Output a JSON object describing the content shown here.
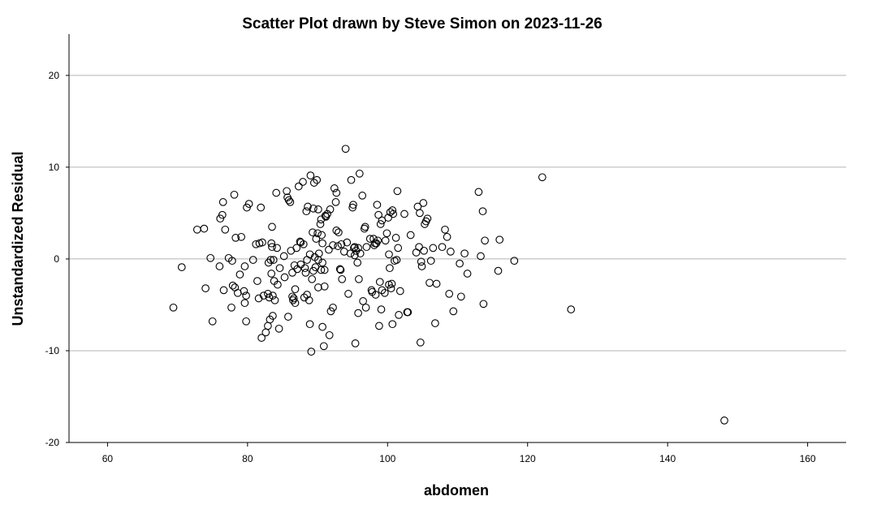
{
  "chart_data": {
    "type": "scatter",
    "title": "Scatter Plot drawn by Steve Simon on 2023-11-26",
    "xlabel": "abdomen",
    "ylabel": "Unstandardized Residual",
    "xlim": [
      54.5,
      165.5
    ],
    "ylim": [
      -20,
      24.5
    ],
    "xticks": [
      60,
      80,
      100,
      120,
      140,
      160
    ],
    "yticks": [
      -20,
      -10,
      0,
      10,
      20
    ],
    "xtick_labels": [
      "60",
      "80",
      "100",
      "120",
      "140",
      "160"
    ],
    "ytick_labels": [
      "-20",
      "-10",
      "0",
      "10",
      "20"
    ],
    "grid": "horizontal",
    "legend": "none",
    "marker": "open-circle",
    "points": [
      [
        69.4,
        -5.3
      ],
      [
        70.6,
        -0.9
      ],
      [
        72.8,
        3.2
      ],
      [
        73.8,
        3.3
      ],
      [
        74.0,
        -3.2
      ],
      [
        74.7,
        0.1
      ],
      [
        75.0,
        -6.8
      ],
      [
        76.0,
        -0.8
      ],
      [
        76.1,
        4.4
      ],
      [
        76.4,
        4.8
      ],
      [
        76.5,
        6.2
      ],
      [
        76.6,
        -3.4
      ],
      [
        76.8,
        3.2
      ],
      [
        77.3,
        0.1
      ],
      [
        77.7,
        -5.3
      ],
      [
        77.8,
        -0.2
      ],
      [
        77.9,
        -2.9
      ],
      [
        78.1,
        7.0
      ],
      [
        78.2,
        -3.1
      ],
      [
        78.3,
        2.3
      ],
      [
        78.6,
        -3.7
      ],
      [
        78.9,
        -1.7
      ],
      [
        79.1,
        2.4
      ],
      [
        79.5,
        -3.5
      ],
      [
        79.6,
        -0.8
      ],
      [
        79.6,
        -4.8
      ],
      [
        79.8,
        -6.8
      ],
      [
        79.8,
        -4.0
      ],
      [
        79.9,
        5.6
      ],
      [
        80.2,
        6.0
      ],
      [
        80.8,
        -0.1
      ],
      [
        81.2,
        1.6
      ],
      [
        81.4,
        -2.4
      ],
      [
        81.6,
        -4.3
      ],
      [
        81.7,
        1.7
      ],
      [
        81.9,
        5.6
      ],
      [
        82.0,
        -8.6
      ],
      [
        82.1,
        1.8
      ],
      [
        82.3,
        -4.0
      ],
      [
        82.6,
        -8.0
      ],
      [
        82.9,
        -3.8
      ],
      [
        82.9,
        -7.3
      ],
      [
        83.0,
        -0.4
      ],
      [
        83.1,
        -4.2
      ],
      [
        83.2,
        -6.6
      ],
      [
        83.3,
        -0.1
      ],
      [
        83.4,
        -1.6
      ],
      [
        83.4,
        1.7
      ],
      [
        83.5,
        1.3
      ],
      [
        83.5,
        3.5
      ],
      [
        83.6,
        -6.2
      ],
      [
        83.6,
        -4.0
      ],
      [
        83.7,
        -0.1
      ],
      [
        83.8,
        -2.4
      ],
      [
        83.9,
        -4.5
      ],
      [
        84.1,
        7.2
      ],
      [
        84.2,
        1.2
      ],
      [
        84.3,
        -2.8
      ],
      [
        84.5,
        -7.6
      ],
      [
        84.6,
        -1.0
      ],
      [
        85.2,
        0.3
      ],
      [
        85.3,
        -2.0
      ],
      [
        85.6,
        7.4
      ],
      [
        85.7,
        6.7
      ],
      [
        85.8,
        -6.3
      ],
      [
        85.9,
        6.4
      ],
      [
        86.1,
        6.2
      ],
      [
        86.2,
        0.9
      ],
      [
        86.4,
        -4.1
      ],
      [
        86.4,
        -1.5
      ],
      [
        86.5,
        -4.5
      ],
      [
        86.6,
        -4.3
      ],
      [
        86.7,
        -0.7
      ],
      [
        86.8,
        -4.8
      ],
      [
        86.8,
        -3.3
      ],
      [
        87.0,
        1.2
      ],
      [
        87.1,
        -1.1
      ],
      [
        87.3,
        7.9
      ],
      [
        87.5,
        1.9
      ],
      [
        87.6,
        -0.6
      ],
      [
        87.6,
        1.8
      ],
      [
        87.9,
        8.4
      ],
      [
        88.0,
        1.6
      ],
      [
        88.1,
        -4.2
      ],
      [
        88.2,
        -1.0
      ],
      [
        88.3,
        -1.5
      ],
      [
        88.4,
        5.2
      ],
      [
        88.5,
        -0.1
      ],
      [
        88.5,
        -3.9
      ],
      [
        88.6,
        5.7
      ],
      [
        88.8,
        -4.5
      ],
      [
        88.9,
        0.5
      ],
      [
        88.9,
        -7.1
      ],
      [
        89.0,
        9.1
      ],
      [
        89.1,
        -10.1
      ],
      [
        89.2,
        -2.2
      ],
      [
        89.3,
        2.9
      ],
      [
        89.4,
        -1.3
      ],
      [
        89.4,
        5.5
      ],
      [
        89.5,
        8.3
      ],
      [
        89.6,
        0.2
      ],
      [
        89.7,
        -0.9
      ],
      [
        89.8,
        2.2
      ],
      [
        89.9,
        8.6
      ],
      [
        90.0,
        2.8
      ],
      [
        90.1,
        5.4
      ],
      [
        90.1,
        -0.1
      ],
      [
        90.1,
        -3.1
      ],
      [
        90.2,
        0.6
      ],
      [
        90.4,
        3.8
      ],
      [
        90.5,
        -1.2
      ],
      [
        90.5,
        4.3
      ],
      [
        90.6,
        2.6
      ],
      [
        90.7,
        -0.4
      ],
      [
        90.7,
        1.7
      ],
      [
        90.7,
        -7.4
      ],
      [
        90.9,
        -9.5
      ],
      [
        91.0,
        -1.2
      ],
      [
        91.0,
        -3.0
      ],
      [
        91.1,
        4.7
      ],
      [
        91.2,
        4.6
      ],
      [
        91.4,
        4.9
      ],
      [
        91.6,
        1.0
      ],
      [
        91.7,
        -8.3
      ],
      [
        91.8,
        5.4
      ],
      [
        91.9,
        -5.7
      ],
      [
        92.2,
        1.5
      ],
      [
        92.2,
        -5.3
      ],
      [
        92.4,
        7.7
      ],
      [
        92.6,
        6.2
      ],
      [
        92.7,
        7.2
      ],
      [
        92.7,
        3.1
      ],
      [
        92.9,
        1.4
      ],
      [
        93.0,
        2.9
      ],
      [
        93.2,
        -1.1
      ],
      [
        93.3,
        -1.2
      ],
      [
        93.4,
        1.6
      ],
      [
        93.5,
        -2.2
      ],
      [
        93.8,
        0.8
      ],
      [
        94.0,
        12.0
      ],
      [
        94.2,
        1.8
      ],
      [
        94.4,
        -3.8
      ],
      [
        94.7,
        0.6
      ],
      [
        94.8,
        8.6
      ],
      [
        95.0,
        5.6
      ],
      [
        95.1,
        5.9
      ],
      [
        95.2,
        1.2
      ],
      [
        95.3,
        0.4
      ],
      [
        95.3,
        1.3
      ],
      [
        95.4,
        -9.2
      ],
      [
        95.5,
        0.9
      ],
      [
        95.7,
        -0.4
      ],
      [
        95.8,
        -5.9
      ],
      [
        95.8,
        1.2
      ],
      [
        95.9,
        -2.2
      ],
      [
        96.0,
        9.3
      ],
      [
        96.1,
        0.6
      ],
      [
        96.4,
        6.9
      ],
      [
        96.5,
        -4.6
      ],
      [
        96.7,
        3.3
      ],
      [
        96.8,
        3.5
      ],
      [
        96.9,
        -5.3
      ],
      [
        97.0,
        1.3
      ],
      [
        97.5,
        2.2
      ],
      [
        97.7,
        -3.4
      ],
      [
        97.8,
        -3.6
      ],
      [
        98.0,
        2.2
      ],
      [
        98.1,
        1.5
      ],
      [
        98.2,
        1.7
      ],
      [
        98.3,
        -3.9
      ],
      [
        98.4,
        1.7
      ],
      [
        98.5,
        5.9
      ],
      [
        98.6,
        2.0
      ],
      [
        98.7,
        4.8
      ],
      [
        98.8,
        -7.3
      ],
      [
        98.9,
        -2.5
      ],
      [
        99.0,
        3.8
      ],
      [
        99.1,
        -5.5
      ],
      [
        99.2,
        4.2
      ],
      [
        99.2,
        -3.4
      ],
      [
        99.6,
        -3.7
      ],
      [
        99.7,
        2.0
      ],
      [
        99.9,
        2.8
      ],
      [
        100.1,
        4.5
      ],
      [
        100.2,
        -2.8
      ],
      [
        100.2,
        0.5
      ],
      [
        100.3,
        -1.0
      ],
      [
        100.4,
        5.1
      ],
      [
        100.5,
        -3.2
      ],
      [
        100.6,
        -2.7
      ],
      [
        100.7,
        5.3
      ],
      [
        100.7,
        -7.1
      ],
      [
        100.8,
        4.9
      ],
      [
        101.0,
        -0.2
      ],
      [
        101.2,
        2.3
      ],
      [
        101.3,
        -0.1
      ],
      [
        101.4,
        7.4
      ],
      [
        101.5,
        1.2
      ],
      [
        101.6,
        -6.1
      ],
      [
        101.8,
        -3.5
      ],
      [
        102.4,
        4.9
      ],
      [
        102.8,
        -5.8
      ],
      [
        102.9,
        -5.8
      ],
      [
        103.3,
        2.6
      ],
      [
        104.1,
        0.7
      ],
      [
        104.3,
        5.7
      ],
      [
        104.5,
        1.3
      ],
      [
        104.6,
        5.0
      ],
      [
        104.7,
        -9.1
      ],
      [
        104.8,
        -0.3
      ],
      [
        104.9,
        -0.8
      ],
      [
        105.1,
        6.1
      ],
      [
        105.2,
        0.9
      ],
      [
        105.3,
        3.8
      ],
      [
        105.5,
        4.1
      ],
      [
        105.7,
        4.4
      ],
      [
        106.0,
        -2.6
      ],
      [
        106.2,
        -0.2
      ],
      [
        106.5,
        1.2
      ],
      [
        106.8,
        -7.0
      ],
      [
        107.0,
        -2.7
      ],
      [
        107.8,
        1.3
      ],
      [
        108.2,
        3.2
      ],
      [
        108.5,
        2.4
      ],
      [
        108.8,
        -3.8
      ],
      [
        109.0,
        0.8
      ],
      [
        109.4,
        -5.7
      ],
      [
        110.3,
        -0.5
      ],
      [
        110.5,
        -4.1
      ],
      [
        111.0,
        0.6
      ],
      [
        111.4,
        -1.6
      ],
      [
        113.0,
        7.3
      ],
      [
        113.3,
        0.3
      ],
      [
        113.6,
        5.2
      ],
      [
        113.7,
        -4.9
      ],
      [
        113.9,
        2.0
      ],
      [
        115.8,
        -1.3
      ],
      [
        116.0,
        2.1
      ],
      [
        118.1,
        -0.2
      ],
      [
        122.1,
        8.9
      ],
      [
        126.2,
        -5.5
      ],
      [
        148.1,
        -17.6
      ]
    ]
  }
}
